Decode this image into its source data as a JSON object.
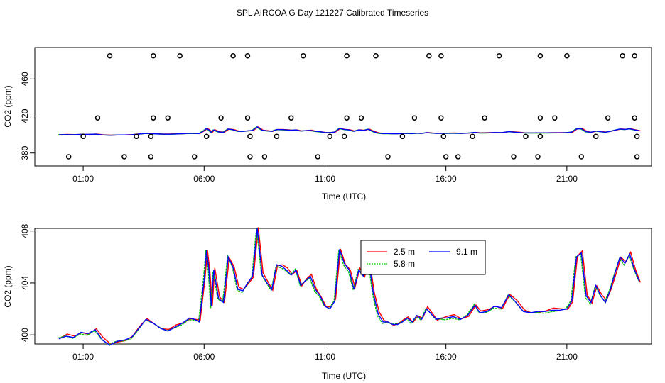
{
  "page_title": "SPL AIRCOA G  Day 121227  Calibrated Timeseries",
  "chart_data": [
    {
      "type": "line",
      "title": "SPL AIRCOA G  Day 121227  Calibrated Timeseries",
      "xlabel": "Time (UTC)",
      "ylabel": "CO2 (ppm)",
      "xlim": [
        -1.0,
        24.5
      ],
      "ylim": [
        366,
        494
      ],
      "x_ticks": [
        {
          "v": 1,
          "label": "01:00"
        },
        {
          "v": 6,
          "label": "06:00"
        },
        {
          "v": 11,
          "label": "11:00"
        },
        {
          "v": 16,
          "label": "16:00"
        },
        {
          "v": 21,
          "label": "21:00"
        }
      ],
      "y_ticks": [
        {
          "v": 380,
          "label": "380"
        },
        {
          "v": 420,
          "label": "420"
        },
        {
          "v": 460,
          "label": "460"
        }
      ],
      "series": [
        {
          "name": "2.5 m",
          "color": "#ff0000",
          "offset": 0.05
        },
        {
          "name": "5.8 m",
          "color": "#00c000",
          "offset": -0.05
        },
        {
          "name": "9.1 m",
          "color": "#0000ff",
          "offset": 0
        }
      ],
      "markers": {
        "shape": "open-circle",
        "points": [
          [
            0.4,
            376
          ],
          [
            1.0,
            398
          ],
          [
            1.6,
            418
          ],
          [
            2.1,
            485
          ],
          [
            2.7,
            376
          ],
          [
            3.2,
            398
          ],
          [
            3.8,
            376
          ],
          [
            3.8,
            398
          ],
          [
            3.9,
            418
          ],
          [
            3.9,
            485
          ],
          [
            4.5,
            418
          ],
          [
            5.0,
            485
          ],
          [
            5.6,
            376
          ],
          [
            6.1,
            398
          ],
          [
            6.7,
            418
          ],
          [
            7.2,
            485
          ],
          [
            7.8,
            485
          ],
          [
            7.8,
            418
          ],
          [
            7.9,
            398
          ],
          [
            7.9,
            376
          ],
          [
            8.5,
            376
          ],
          [
            9.0,
            398
          ],
          [
            9.6,
            418
          ],
          [
            10.1,
            485
          ],
          [
            10.7,
            376
          ],
          [
            11.2,
            398
          ],
          [
            11.8,
            398
          ],
          [
            11.9,
            418
          ],
          [
            11.9,
            485
          ],
          [
            12.5,
            418
          ],
          [
            13.1,
            485
          ],
          [
            13.6,
            376
          ],
          [
            14.2,
            398
          ],
          [
            14.7,
            418
          ],
          [
            15.3,
            485
          ],
          [
            15.8,
            485
          ],
          [
            15.8,
            418
          ],
          [
            15.9,
            398
          ],
          [
            16.0,
            376
          ],
          [
            16.5,
            376
          ],
          [
            17.1,
            398
          ],
          [
            17.6,
            418
          ],
          [
            18.2,
            485
          ],
          [
            18.8,
            376
          ],
          [
            19.3,
            398
          ],
          [
            19.8,
            376
          ],
          [
            19.9,
            398
          ],
          [
            19.9,
            418
          ],
          [
            19.9,
            485
          ],
          [
            20.5,
            418
          ],
          [
            21.0,
            485
          ],
          [
            21.6,
            376
          ],
          [
            22.2,
            398
          ],
          [
            22.7,
            418
          ],
          [
            23.3,
            485
          ],
          [
            23.8,
            485
          ],
          [
            23.8,
            418
          ],
          [
            23.9,
            398
          ],
          [
            23.9,
            376
          ]
        ]
      }
    },
    {
      "type": "line",
      "xlabel": "Time (UTC)",
      "ylabel": "CO2 (ppm)",
      "xlim": [
        -1.0,
        24.5
      ],
      "ylim": [
        399.3,
        408.2
      ],
      "x_ticks": [
        {
          "v": 1,
          "label": "01:00"
        },
        {
          "v": 6,
          "label": "06:00"
        },
        {
          "v": 11,
          "label": "11:00"
        },
        {
          "v": 16,
          "label": "16:00"
        },
        {
          "v": 21,
          "label": "21:00"
        }
      ],
      "y_ticks": [
        {
          "v": 400,
          "label": "400"
        },
        {
          "v": 404,
          "label": "404"
        },
        {
          "v": 408,
          "label": "408"
        }
      ],
      "legend": {
        "position": "top-center",
        "entries": [
          "2.5 m",
          "9.1 m",
          "5.8 m"
        ]
      },
      "series": [
        {
          "name": "2.5 m",
          "color": "#ff0000"
        },
        {
          "name": "5.8 m",
          "color": "#00c000"
        },
        {
          "name": "9.1 m",
          "color": "#0000ff"
        }
      ],
      "base_x": [
        0.0,
        0.3,
        0.6,
        0.9,
        1.2,
        1.5,
        1.8,
        2.1,
        2.4,
        2.7,
        3.0,
        3.3,
        3.6,
        3.9,
        4.2,
        4.5,
        4.8,
        5.1,
        5.4,
        5.6,
        5.8,
        6.0,
        6.1,
        6.2,
        6.3,
        6.4,
        6.6,
        6.8,
        7.0,
        7.2,
        7.4,
        7.6,
        7.8,
        8.0,
        8.2,
        8.4,
        8.6,
        8.8,
        9.0,
        9.2,
        9.4,
        9.6,
        9.8,
        10.0,
        10.2,
        10.4,
        10.6,
        10.8,
        11.0,
        11.2,
        11.4,
        11.6,
        11.8,
        12.0,
        12.2,
        12.4,
        12.6,
        12.8,
        13.0,
        13.2,
        13.4,
        13.6,
        13.8,
        14.0,
        14.2,
        14.4,
        14.6,
        14.8,
        15.0,
        15.2,
        15.4,
        15.6,
        15.8,
        16.0,
        16.3,
        16.6,
        16.9,
        17.2,
        17.4,
        17.7,
        18.0,
        18.3,
        18.6,
        18.9,
        19.2,
        19.5,
        19.8,
        20.1,
        20.4,
        20.7,
        21.0,
        21.2,
        21.4,
        21.6,
        21.8,
        22.0,
        22.2,
        22.4,
        22.6,
        22.8,
        23.0,
        23.2,
        23.4,
        23.6,
        23.8,
        24.0
      ],
      "base_y": [
        399.7,
        399.9,
        399.8,
        400.2,
        400.1,
        400.4,
        399.6,
        399.2,
        399.5,
        399.6,
        399.8,
        400.5,
        401.2,
        400.9,
        400.5,
        400.3,
        400.6,
        400.9,
        401.3,
        401.2,
        401.0,
        404.2,
        406.5,
        405.0,
        402.2,
        405.0,
        402.8,
        402.5,
        406.0,
        405.2,
        403.5,
        403.4,
        404.0,
        404.5,
        408.2,
        404.6,
        404.0,
        403.5,
        405.4,
        405.3,
        405.0,
        404.6,
        405.0,
        403.8,
        404.2,
        404.5,
        403.5,
        403.0,
        402.2,
        402.0,
        402.6,
        406.6,
        405.5,
        405.0,
        403.5,
        405.0,
        404.5,
        405.8,
        403.2,
        401.6,
        401.0,
        401.0,
        400.8,
        400.8,
        401.0,
        401.3,
        401.0,
        401.5,
        401.2,
        402.0,
        401.6,
        401.2,
        401.3,
        401.3,
        401.4,
        401.2,
        401.5,
        402.3,
        401.7,
        401.8,
        402.2,
        402.1,
        403.1,
        402.5,
        401.8,
        401.7,
        401.8,
        401.8,
        401.9,
        401.9,
        402.0,
        402.6,
        406.0,
        406.3,
        403.0,
        402.5,
        403.8,
        403.0,
        402.5,
        403.5,
        404.8,
        406.0,
        405.5,
        406.2,
        405.0,
        404.1
      ]
    }
  ]
}
